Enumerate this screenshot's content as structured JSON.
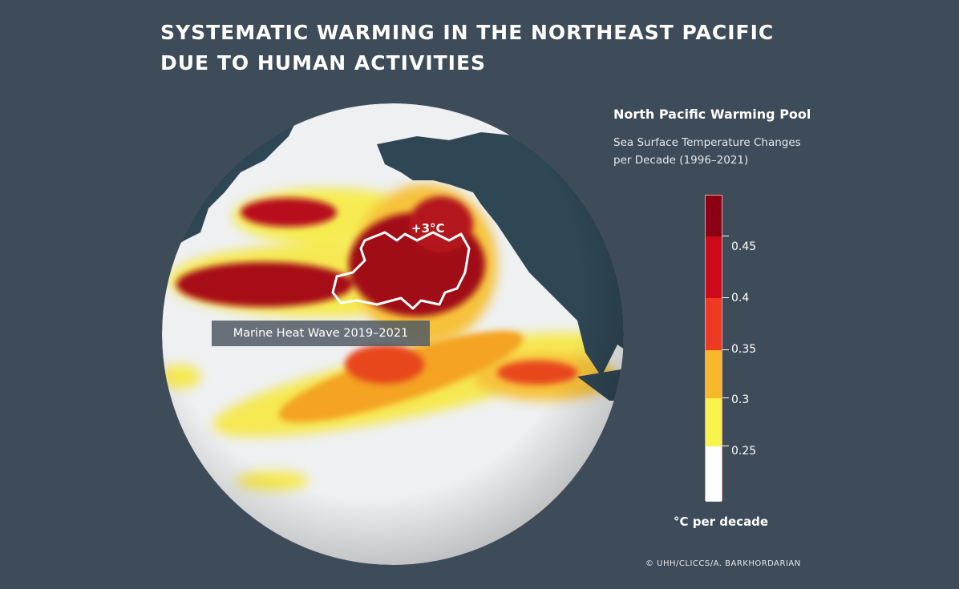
{
  "title_lines": [
    "SYSTEMATIC WARMING IN THE NORTHEAST PACIFIC",
    "DUE TO HUMAN ACTIVITIES"
  ],
  "legend": {
    "title": "North Pacific Warming Pool",
    "subtitle_lines": [
      "Sea Surface Temperature Changes",
      "per Decade (1996–2021)"
    ],
    "unit": "°C per decade",
    "ticks": [
      "0.45",
      "0.4",
      "0.35",
      "0.3",
      "0.25"
    ],
    "colors": [
      "#8b0012",
      "#cc0a1c",
      "#ee3a22",
      "#f6b929",
      "#f7f44e",
      "#ffffff"
    ]
  },
  "map": {
    "region_label": "Marine Heat Wave 2019–2021",
    "anomaly_label": "+3°C",
    "ocean_color": "#eef0f2",
    "land_color": "#2f4654"
  },
  "credit": "© UHH/CLICCS/A. BARKHORDARIAN"
}
